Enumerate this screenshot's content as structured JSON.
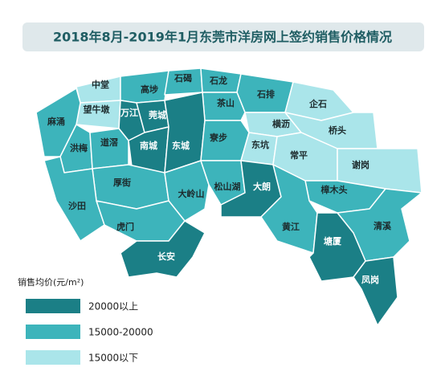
{
  "title": "2018年8月-2019年1月东莞市洋房网上签约销售价格情况",
  "legend": {
    "title": "销售均价(元/m²)",
    "items": [
      {
        "label": "20000以上",
        "color": "#1b7f86"
      },
      {
        "label": "15000-20000",
        "color": "#3db4bb"
      },
      {
        "label": "15000以下",
        "color": "#aae5ea"
      }
    ]
  },
  "regions": [
    {
      "name": "中堂",
      "tier": 2
    },
    {
      "name": "高埗",
      "tier": 1
    },
    {
      "name": "石碣",
      "tier": 1
    },
    {
      "name": "石龙",
      "tier": 1
    },
    {
      "name": "石排",
      "tier": 1
    },
    {
      "name": "企石",
      "tier": 2
    },
    {
      "name": "茶山",
      "tier": 1
    },
    {
      "name": "望牛墩",
      "tier": 2
    },
    {
      "name": "万江",
      "tier": 0
    },
    {
      "name": "莞城",
      "tier": 0
    },
    {
      "name": "麻涌",
      "tier": 1
    },
    {
      "name": "横沥",
      "tier": 2
    },
    {
      "name": "桥头",
      "tier": 2
    },
    {
      "name": "洪梅",
      "tier": 1
    },
    {
      "name": "道滘",
      "tier": 1
    },
    {
      "name": "南城",
      "tier": 0
    },
    {
      "name": "东城",
      "tier": 0
    },
    {
      "name": "寮步",
      "tier": 1
    },
    {
      "name": "东坑",
      "tier": 2
    },
    {
      "name": "常平",
      "tier": 2
    },
    {
      "name": "谢岗",
      "tier": 2
    },
    {
      "name": "厚街",
      "tier": 1
    },
    {
      "name": "沙田",
      "tier": 1
    },
    {
      "name": "大岭山",
      "tier": 1
    },
    {
      "name": "松山湖",
      "tier": 1
    },
    {
      "name": "大朗",
      "tier": 0
    },
    {
      "name": "樟木头",
      "tier": 1
    },
    {
      "name": "黄江",
      "tier": 1
    },
    {
      "name": "清溪",
      "tier": 1
    },
    {
      "name": "虎门",
      "tier": 1
    },
    {
      "name": "塘厦",
      "tier": 0
    },
    {
      "name": "长安",
      "tier": 0
    },
    {
      "name": "凤岗",
      "tier": 0
    }
  ]
}
